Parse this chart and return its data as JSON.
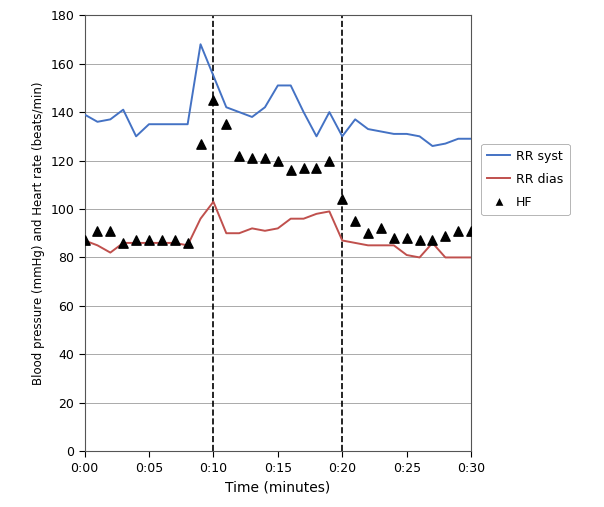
{
  "rr_syst_x": [
    0,
    1,
    2,
    3,
    4,
    5,
    6,
    7,
    8,
    9,
    10,
    11,
    12,
    13,
    14,
    15,
    16,
    17,
    18,
    19,
    20,
    21,
    22,
    23,
    24,
    25,
    26,
    27,
    28,
    29,
    30
  ],
  "rr_syst_y": [
    139,
    136,
    137,
    141,
    130,
    135,
    135,
    135,
    135,
    168,
    155,
    142,
    140,
    138,
    142,
    151,
    151,
    140,
    130,
    140,
    130,
    137,
    133,
    132,
    131,
    131,
    130,
    126,
    127,
    129,
    129
  ],
  "rr_dias_x": [
    0,
    1,
    2,
    3,
    4,
    5,
    6,
    7,
    8,
    9,
    10,
    11,
    12,
    13,
    14,
    15,
    16,
    17,
    18,
    19,
    20,
    21,
    22,
    23,
    24,
    25,
    26,
    27,
    28,
    29,
    30
  ],
  "rr_dias_y": [
    87,
    85,
    82,
    86,
    86,
    86,
    86,
    86,
    85,
    96,
    103,
    90,
    90,
    92,
    91,
    92,
    96,
    96,
    98,
    99,
    87,
    86,
    85,
    85,
    85,
    81,
    80,
    86,
    80,
    80,
    80
  ],
  "hf_x": [
    0,
    1,
    2,
    3,
    4,
    5,
    6,
    7,
    8,
    9,
    10,
    11,
    12,
    13,
    14,
    15,
    16,
    17,
    18,
    19,
    20,
    21,
    22,
    23,
    24,
    25,
    26,
    27,
    28,
    29,
    30
  ],
  "hf_y": [
    87,
    91,
    91,
    86,
    87,
    87,
    87,
    87,
    86,
    127,
    145,
    135,
    122,
    121,
    121,
    120,
    116,
    117,
    117,
    120,
    104,
    95,
    90,
    92,
    88,
    88,
    87,
    87,
    89,
    91,
    91
  ],
  "vline_x": [
    10,
    20
  ],
  "xlim": [
    0,
    30
  ],
  "ylim": [
    0,
    180
  ],
  "yticks": [
    0,
    20,
    40,
    60,
    80,
    100,
    120,
    140,
    160,
    180
  ],
  "xtick_labels": [
    "0:00",
    "0:05",
    "0:10",
    "0:15",
    "0:20",
    "0:25",
    "0:30"
  ],
  "xtick_positions": [
    0,
    5,
    10,
    15,
    20,
    25,
    30
  ],
  "xlabel": "Time (minutes)",
  "ylabel": "Blood pressure (mmHg) and Heart rate (beats/min)",
  "syst_color": "#4472C4",
  "dias_color": "#C0504D",
  "hf_color": "#000000",
  "legend_labels": [
    "RR syst",
    "RR dias",
    "HF"
  ],
  "fig_width": 6.04,
  "fig_height": 5.07,
  "dpi": 100
}
